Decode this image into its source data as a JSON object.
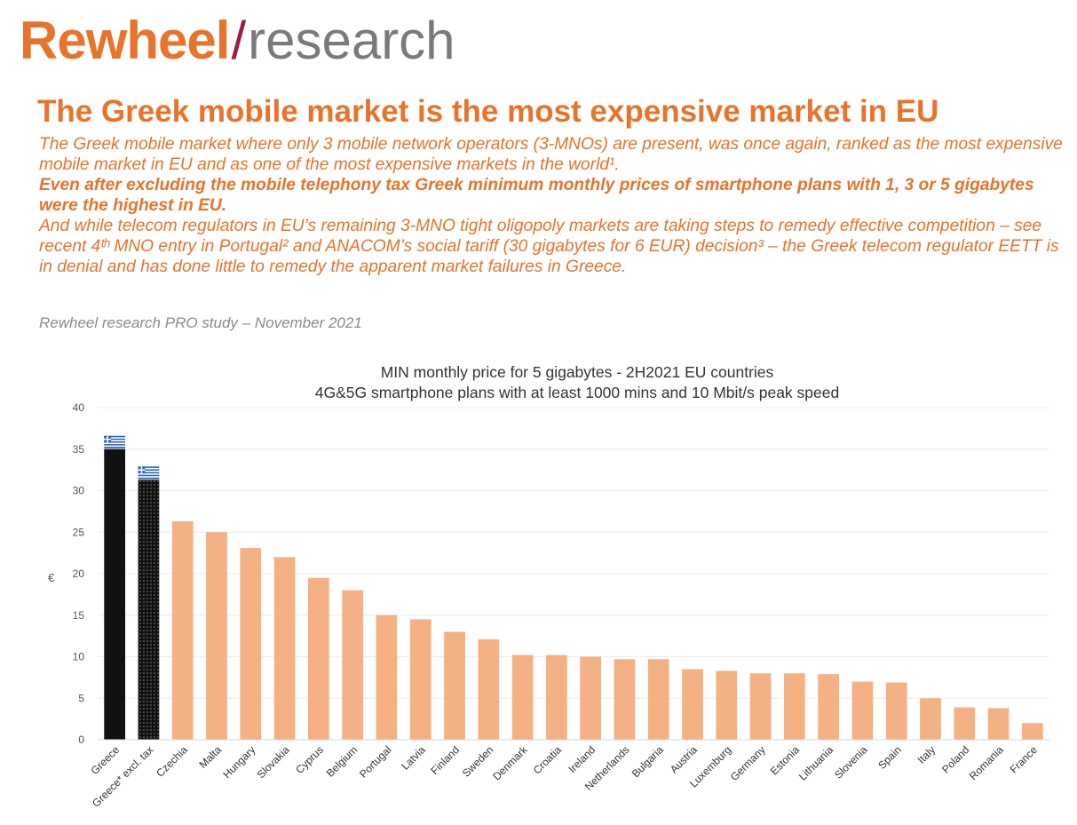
{
  "header": {
    "logo_brand": "Rewheel",
    "logo_slash": "/",
    "logo_research": "research",
    "headline": "The Greek mobile market is the most expensive market in EU",
    "para1": "The Greek mobile market where only 3 mobile network operators (3-MNOs) are present, was once again, ranked as the most expensive mobile market in EU and as one of the most expensive markets in the world¹.",
    "para2": "Even after excluding the mobile telephony tax Greek minimum monthly prices of smartphone plans with 1, 3 or 5 gigabytes were the highest in EU.",
    "para3": "And while telecom regulators in EU’s remaining 3-MNO tight oligopoly markets are taking steps to remedy effective competition – see recent 4ᵗʰ MNO entry in Portugal² and ANACOM’s social tariff (30 gigabytes for 6 EUR) decision³ – the Greek telecom regulator EETT is in denial and has done little to remedy the apparent market failures in Greece.",
    "study_note": "Rewheel research PRO study – November 2021"
  },
  "colors": {
    "accent": "#e8732a",
    "slash": "#a0174a",
    "bar": "#f4b183",
    "greece_bar": "#111111"
  },
  "chart_data": {
    "type": "bar",
    "title": "MIN monthly price for 5 gigabytes - 2H2021 EU countries",
    "subtitle": "4G&5G smartphone plans with at least 1000 mins and 10 Mbit/s peak speed",
    "ylabel": "€",
    "xlabel": "",
    "ylim": [
      0,
      40
    ],
    "yticks": [
      0,
      5,
      10,
      15,
      20,
      25,
      30,
      35,
      40
    ],
    "grid": true,
    "categories": [
      "Greece",
      "Greece* excl. tax",
      "Czechia",
      "Malta",
      "Hungary",
      "Slovakia",
      "Cyprus",
      "Belgium",
      "Portugal",
      "Latvia",
      "Finland",
      "Sweden",
      "Denmark",
      "Croatia",
      "Ireland",
      "Netherlands",
      "Bulgaria",
      "Austria",
      "Luxemburg",
      "Germany",
      "Estonia",
      "Lithuania",
      "Slovenia",
      "Spain",
      "Italy",
      "Poland",
      "Romania",
      "France"
    ],
    "values": [
      35.0,
      31.3,
      26.3,
      25.0,
      23.1,
      22.0,
      19.5,
      18.0,
      15.0,
      14.5,
      13.0,
      12.1,
      10.2,
      10.2,
      10.0,
      9.7,
      9.7,
      8.5,
      8.3,
      8.0,
      8.0,
      7.9,
      7.0,
      6.9,
      5.0,
      3.9,
      3.8,
      2.0
    ],
    "flag_icons": [
      "greek-flag-icon",
      "greek-flag-icon"
    ]
  }
}
